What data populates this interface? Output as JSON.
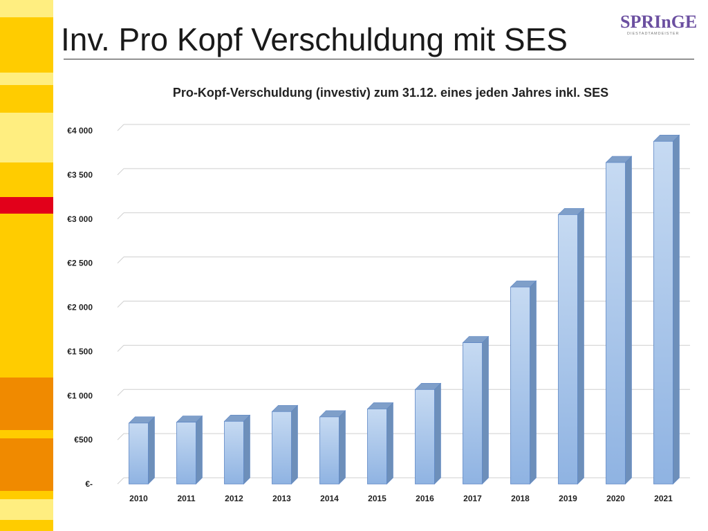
{
  "slide": {
    "title": "Inv. Pro Kopf Verschuldung mit SES"
  },
  "logo": {
    "text": "SPRInGE.",
    "subtitle": "DIESTADTAMDEISTER"
  },
  "colors": {
    "sidebar_yellow_light": "#ffee80",
    "sidebar_yellow": "#ffcc00",
    "sidebar_red": "#e2001a",
    "sidebar_orange": "#f08a00",
    "bar_front_top": "#c6daf2",
    "bar_front_bottom": "#8fb3e2",
    "bar_side": "#6d8fba",
    "bar_top": "#7f9fc9",
    "bar_stroke": "#5d86c4",
    "title_rule": "#333333"
  },
  "chart_data": {
    "type": "bar",
    "title": "Pro-Kopf-Verschuldung (investiv) zum 31.12. eines jeden Jahres inkl. SES",
    "categories": [
      "2010",
      "2011",
      "2012",
      "2013",
      "2014",
      "2015",
      "2016",
      "2017",
      "2018",
      "2019",
      "2020",
      "2021"
    ],
    "values": [
      690,
      700,
      710,
      820,
      760,
      850,
      1070,
      1600,
      2230,
      3050,
      3640,
      3880
    ],
    "ylim": [
      0,
      4000
    ],
    "yticks": [
      0,
      500,
      1000,
      1500,
      2000,
      2500,
      3000,
      3500,
      4000
    ],
    "ytick_labels": [
      "€-",
      "€500",
      "€1 000",
      "€1 500",
      "€2 000",
      "€2 500",
      "€3 000",
      "€3 500",
      "€4 000"
    ],
    "xlabel": "",
    "ylabel": "",
    "grid": true,
    "legend": "none",
    "style": "3d-column"
  }
}
